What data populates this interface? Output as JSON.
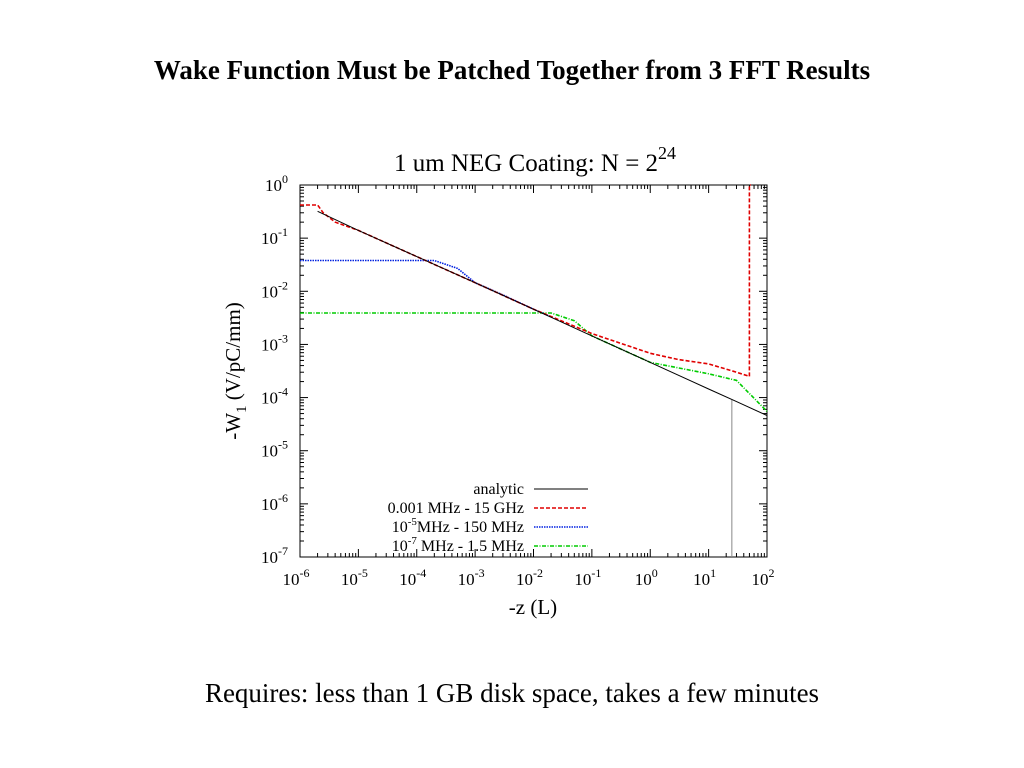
{
  "slide": {
    "title": "Wake Function Must be Patched Together from 3 FFT Results",
    "footer": "Requires: less than 1 GB disk space, takes a few minutes"
  },
  "chart_data": {
    "type": "line",
    "title": "1 um NEG Coating: N = 2",
    "title_superscript": "24",
    "xlabel": "-z (L)",
    "ylabel_main": "-W",
    "ylabel_sub": "1",
    "ylabel_rest": " (V/pC/mm)",
    "x_scale": "log",
    "y_scale": "log",
    "xlim": [
      1e-06,
      100
    ],
    "ylim": [
      1e-07,
      1
    ],
    "x_ticks": [
      {
        "base": "10",
        "exp": "-6",
        "value": 1e-06
      },
      {
        "base": "10",
        "exp": "-5",
        "value": 1e-05
      },
      {
        "base": "10",
        "exp": "-4",
        "value": 0.0001
      },
      {
        "base": "10",
        "exp": "-3",
        "value": 0.001
      },
      {
        "base": "10",
        "exp": "-2",
        "value": 0.01
      },
      {
        "base": "10",
        "exp": "-1",
        "value": 0.1
      },
      {
        "base": "10",
        "exp": "0",
        "value": 1
      },
      {
        "base": "10",
        "exp": "1",
        "value": 10
      },
      {
        "base": "10",
        "exp": "2",
        "value": 100
      }
    ],
    "y_ticks": [
      {
        "base": "10",
        "exp": "0",
        "value": 1
      },
      {
        "base": "10",
        "exp": "-1",
        "value": 0.1
      },
      {
        "base": "10",
        "exp": "-2",
        "value": 0.01
      },
      {
        "base": "10",
        "exp": "-3",
        "value": 0.001
      },
      {
        "base": "10",
        "exp": "-4",
        "value": 0.0001
      },
      {
        "base": "10",
        "exp": "-5",
        "value": 1e-05
      },
      {
        "base": "10",
        "exp": "-6",
        "value": 1e-06
      },
      {
        "base": "10",
        "exp": "-7",
        "value": 1e-07
      }
    ],
    "grid": false,
    "legend_position": "bottom-right",
    "series": [
      {
        "name": "analytic",
        "color": "#000000",
        "dash": "none",
        "x": [
          2e-06,
          1e-05,
          0.0001,
          0.001,
          0.01,
          0.1,
          1,
          10,
          30,
          100
        ],
        "y": [
          0.32,
          0.14,
          0.045,
          0.0145,
          0.0046,
          0.00145,
          0.00046,
          0.000145,
          8.4e-05,
          4.6e-05
        ]
      },
      {
        "name": "0.001 MHz - 15 GHz",
        "color": "#e00000",
        "dash": "4,2",
        "x": [
          1e-06,
          2e-06,
          2.5e-06,
          4e-06,
          1e-05,
          0.0001,
          0.001,
          0.01,
          0.1,
          1,
          3,
          10,
          30,
          50,
          50,
          53
        ],
        "y": [
          0.42,
          0.42,
          0.3,
          0.2,
          0.14,
          0.045,
          0.0145,
          0.0046,
          0.0016,
          0.00068,
          0.00052,
          0.00043,
          0.0003,
          0.00025,
          1.0,
          1.0
        ]
      },
      {
        "name": "10^-5 MHz - 150 MHz",
        "color": "#0020e0",
        "dash": "1.5,1",
        "x": [
          1e-06,
          0.0001,
          0.0002,
          0.0005,
          0.001,
          0.003,
          0.01,
          0.02
        ],
        "y": [
          0.038,
          0.038,
          0.038,
          0.027,
          0.0145,
          0.0085,
          0.0046,
          0.0033
        ]
      },
      {
        "name": "10^-7 MHz - 1.5 MHz",
        "color": "#00cc00",
        "dash": "4,1.5,1,1.5",
        "x": [
          1e-06,
          0.001,
          0.01,
          0.02,
          0.05,
          0.1,
          1,
          10,
          30,
          100
        ],
        "y": [
          0.0039,
          0.0039,
          0.0039,
          0.0039,
          0.0028,
          0.00145,
          0.00046,
          0.00028,
          0.00021,
          5.5e-05
        ]
      }
    ],
    "annotations": [
      {
        "type": "vertical_line",
        "x": 25,
        "y_from": 1e-07,
        "y_to": 9e-05,
        "color": "#888888"
      }
    ],
    "legend": [
      {
        "label": "analytic"
      },
      {
        "label": "0.001 MHz - 15 GHz"
      },
      {
        "label_base": "10",
        "label_exp": "-5",
        "label_rest": "MHz - 150 MHz"
      },
      {
        "label_base": "10",
        "label_exp": "-7",
        "label_rest": " MHz - 1.5 MHz"
      }
    ]
  }
}
